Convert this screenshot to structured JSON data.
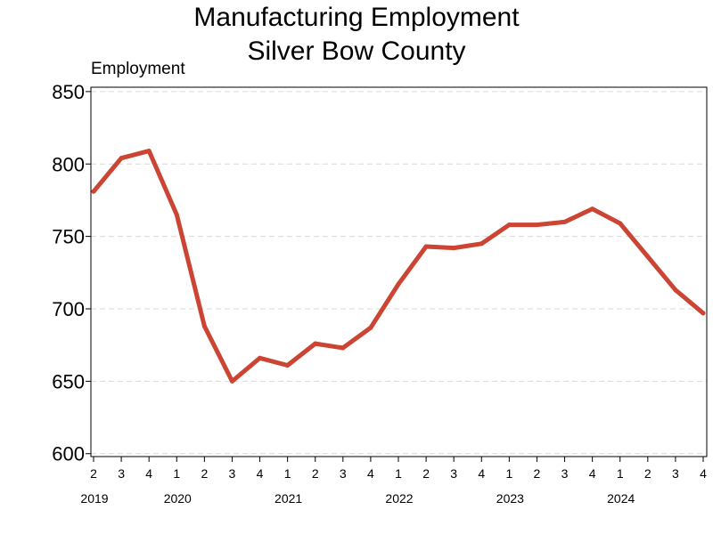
{
  "chart_data": {
    "type": "line",
    "title": [
      "Manufacturing Employment",
      "Silver Bow County"
    ],
    "ylabel": "Employment",
    "xlabel": "",
    "ylim": [
      598,
      853
    ],
    "yticks": [
      600,
      650,
      700,
      750,
      800,
      850
    ],
    "grid": true,
    "categories": [
      "2019 Q2",
      "2019 Q3",
      "2019 Q4",
      "2020 Q1",
      "2020 Q2",
      "2020 Q3",
      "2020 Q4",
      "2021 Q1",
      "2021 Q2",
      "2021 Q3",
      "2021 Q4",
      "2022 Q1",
      "2022 Q2",
      "2022 Q3",
      "2022 Q4",
      "2023 Q1",
      "2023 Q2",
      "2023 Q3",
      "2023 Q4",
      "2024 Q1",
      "2024 Q2",
      "2024 Q3",
      "2024 Q4"
    ],
    "quarter_labels": [
      "2",
      "3",
      "4",
      "1",
      "2",
      "3",
      "4",
      "1",
      "2",
      "3",
      "4",
      "1",
      "2",
      "3",
      "4",
      "1",
      "2",
      "3",
      "4",
      "1",
      "2",
      "3",
      "4"
    ],
    "year_labels": [
      {
        "label": "2019",
        "index": 0
      },
      {
        "label": "2020",
        "index": 3
      },
      {
        "label": "2021",
        "index": 7
      },
      {
        "label": "2022",
        "index": 11
      },
      {
        "label": "2023",
        "index": 15
      },
      {
        "label": "2024",
        "index": 19
      }
    ],
    "series": [
      {
        "values": [
          781,
          804,
          809,
          765,
          688,
          650,
          666,
          661,
          676,
          673,
          687,
          717,
          743,
          742,
          745,
          758,
          758,
          760,
          769,
          759,
          736,
          713,
          697
        ],
        "color": "#cc4433"
      }
    ]
  }
}
